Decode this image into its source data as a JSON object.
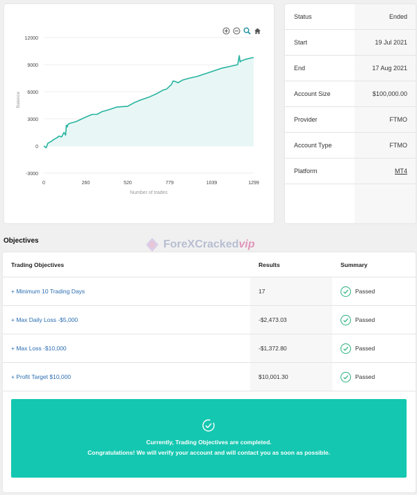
{
  "chart_data": {
    "type": "area",
    "xlabel": "Number of trades",
    "ylabel": "Balance",
    "xlim": [
      0,
      1299
    ],
    "ylim": [
      -3000,
      12000
    ],
    "x_ticks": [
      "0",
      "260",
      "520",
      "779",
      "1039",
      "1299"
    ],
    "y_ticks": [
      "12000",
      "9000",
      "6000",
      "3000",
      "0",
      "-3000"
    ],
    "x_tick_values": [
      0,
      260,
      520,
      779,
      1039,
      1299
    ],
    "y_tick_values": [
      12000,
      9000,
      6000,
      3000,
      0,
      -3000
    ],
    "line_color": "#26b3a0",
    "fill_color": "#e8f7f5",
    "series": [
      {
        "x": [
          0,
          15,
          25,
          50,
          60,
          80,
          95,
          110,
          125,
          135,
          140,
          145,
          150,
          160,
          200,
          260,
          300,
          330,
          360,
          400,
          450,
          520,
          560,
          600,
          650,
          700,
          740,
          760,
          790,
          800,
          820,
          830,
          860,
          900,
          950,
          1000,
          1050,
          1100,
          1150,
          1200,
          1210,
          1215,
          1220,
          1250,
          1299
        ],
        "y": [
          0,
          -200,
          300,
          550,
          700,
          900,
          1100,
          1000,
          1500,
          1200,
          2300,
          2100,
          2400,
          2500,
          2700,
          3200,
          3500,
          3500,
          3800,
          4000,
          4300,
          4400,
          4800,
          5100,
          5400,
          5800,
          6200,
          6300,
          6800,
          7200,
          7100,
          7000,
          7300,
          7500,
          7700,
          8000,
          8300,
          8600,
          8800,
          9000,
          10000,
          9300,
          9400,
          9600,
          9800
        ]
      }
    ]
  },
  "chart_tools": [
    {
      "name": "zoom-in-icon",
      "glyph": "+"
    },
    {
      "name": "zoom-out-icon",
      "glyph": "−"
    },
    {
      "name": "search-zoom-icon",
      "glyph": ""
    },
    {
      "name": "home-icon",
      "glyph": ""
    }
  ],
  "info": [
    {
      "label": "Status",
      "value": "Ended"
    },
    {
      "label": "Start",
      "value": "19 Jul 2021"
    },
    {
      "label": "End",
      "value": "17 Aug 2021"
    },
    {
      "label": "Account Size",
      "value": "$100,000.00"
    },
    {
      "label": "Provider",
      "value": "FTMO"
    },
    {
      "label": "Account Type",
      "value": "FTMO"
    },
    {
      "label": "Platform",
      "value": "MT4"
    }
  ],
  "watermark": {
    "main": "ForeXCracked",
    "accent": "vip"
  },
  "objectives": {
    "heading": "Objectives",
    "columns": [
      "Trading Objectives",
      "Results",
      "Summary"
    ],
    "rows": [
      {
        "objective": "+ Minimum 10 Trading Days",
        "result": "17",
        "summary": "Passed"
      },
      {
        "objective": "+ Max Daily Loss -$5,000",
        "result": "-$2,473.03",
        "summary": "Passed"
      },
      {
        "objective": "+ Max Loss -$10,000",
        "result": "-$1,372.80",
        "summary": "Passed"
      },
      {
        "objective": "+ Profit Target $10,000",
        "result": "$10,001.30",
        "summary": "Passed"
      }
    ],
    "banner": {
      "line1": "Currently, Trading Objectives are completed.",
      "line2": "Congratulations! We will verify your account and will contact you as soon as possible.",
      "color": "#14c7b0"
    }
  },
  "colors": {
    "accent": "#14c7b0",
    "link": "#2a6db0",
    "check": "#27b07d"
  }
}
